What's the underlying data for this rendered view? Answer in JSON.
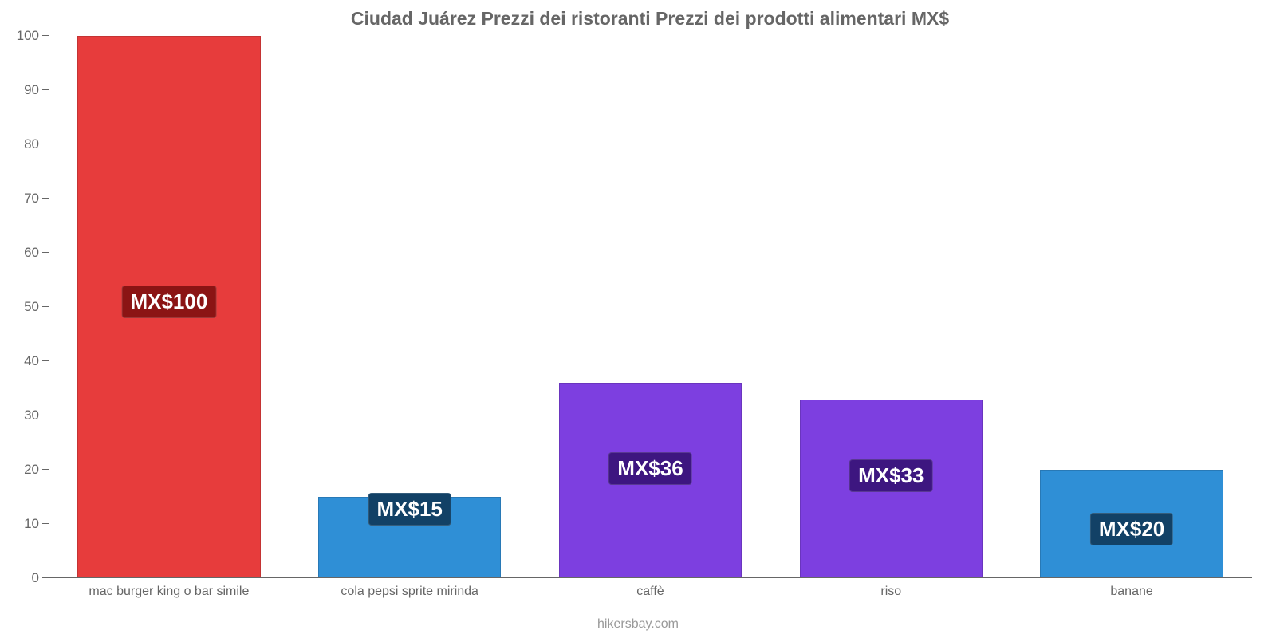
{
  "chart": {
    "type": "bar",
    "title": "Ciudad Juárez Prezzi dei ristoranti Prezzi dei prodotti alimentari MX$",
    "title_fontsize": 23,
    "title_color": "#666666",
    "background_color": "#ffffff",
    "footer_text": "hikersbay.com",
    "footer_color": "#999999",
    "y_axis": {
      "min": 0,
      "max": 100,
      "ticks": [
        0,
        10,
        20,
        30,
        40,
        50,
        60,
        70,
        80,
        90,
        100
      ],
      "tick_fontsize": 17,
      "tick_color": "#666666"
    },
    "categories": [
      "mac burger king o bar simile",
      "cola pepsi sprite mirinda",
      "caffè",
      "riso",
      "banane"
    ],
    "values": [
      100,
      15,
      36,
      33,
      20
    ],
    "value_labels": [
      "MX$100",
      "MX$15",
      "MX$36",
      "MX$33",
      "MX$20"
    ],
    "bar_colors": [
      "#e73c3c",
      "#2f8fd6",
      "#7d3fe0",
      "#7d3fe0",
      "#2f8fd6"
    ],
    "badge_colors": [
      "#8b1414",
      "#124166",
      "#3d1680",
      "#3d1680",
      "#124166"
    ],
    "bar_width_pct": 76,
    "value_label_fontsize": 26,
    "category_fontsize": 16,
    "category_color": "#666666"
  }
}
